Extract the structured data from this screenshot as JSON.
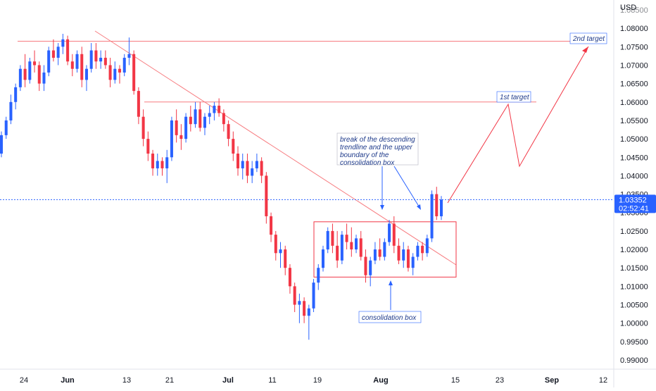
{
  "colors": {
    "up": "#2962ff",
    "down": "#f23645",
    "annotation_line": "#f77c80",
    "annotation_text": "#1e3a8a",
    "last_price_bg": "#2962ff",
    "grid": "#ffffff",
    "axis_text": "#131722",
    "dotted_price_line": "#2962ff"
  },
  "chart_data": {
    "type": "candlestick",
    "title": "",
    "currency": "USD",
    "last_price": "1.03352",
    "countdown": "02:52:41",
    "y_ticks": [
      "1.08500",
      "1.08000",
      "1.07500",
      "1.07000",
      "1.06500",
      "1.06000",
      "1.05500",
      "1.05000",
      "1.04500",
      "1.04000",
      "1.03500",
      "1.03000",
      "1.02500",
      "1.02000",
      "1.01500",
      "1.01000",
      "1.00500",
      "1.00000",
      "0.99500",
      "0.99000"
    ],
    "x_ticks": [
      "24",
      "Jun",
      "13",
      "21",
      "Jul",
      "11",
      "19",
      "Aug",
      "15",
      "23",
      "Sep",
      "12"
    ],
    "ylim": [
      0.9875,
      1.0875
    ],
    "levels": [
      {
        "name": "top-resistance",
        "value": 1.0765
      },
      {
        "name": "mid-resistance",
        "value": 1.06
      }
    ],
    "consolidation_box": {
      "low": 1.0125,
      "high": 1.0275
    },
    "annotations": [
      {
        "key": "target2",
        "text": "2nd target"
      },
      {
        "key": "target1",
        "text": "1st target"
      },
      {
        "key": "break",
        "text": "break of the descending trendline and the upper boundary of the consolidation box"
      },
      {
        "key": "box",
        "text": "consolidation box"
      }
    ],
    "candles": [
      [
        1.046,
        1.052,
        1.045,
        1.051
      ],
      [
        1.051,
        1.056,
        1.05,
        1.055
      ],
      [
        1.055,
        1.062,
        1.054,
        1.06
      ],
      [
        1.06,
        1.065,
        1.058,
        1.064
      ],
      [
        1.064,
        1.07,
        1.063,
        1.069
      ],
      [
        1.069,
        1.073,
        1.064,
        1.066
      ],
      [
        1.066,
        1.072,
        1.065,
        1.071
      ],
      [
        1.071,
        1.074,
        1.068,
        1.07
      ],
      [
        1.07,
        1.071,
        1.063,
        1.065
      ],
      [
        1.065,
        1.07,
        1.063,
        1.068
      ],
      [
        1.068,
        1.075,
        1.067,
        1.074
      ],
      [
        1.074,
        1.077,
        1.071,
        1.072
      ],
      [
        1.072,
        1.076,
        1.07,
        1.075
      ],
      [
        1.075,
        1.0785,
        1.073,
        1.077
      ],
      [
        1.077,
        1.078,
        1.07,
        1.071
      ],
      [
        1.071,
        1.073,
        1.067,
        1.069
      ],
      [
        1.069,
        1.074,
        1.068,
        1.073
      ],
      [
        1.073,
        1.075,
        1.064,
        1.066
      ],
      [
        1.066,
        1.07,
        1.063,
        1.069
      ],
      [
        1.069,
        1.076,
        1.068,
        1.074
      ],
      [
        1.074,
        1.076,
        1.069,
        1.071
      ],
      [
        1.071,
        1.074,
        1.069,
        1.072
      ],
      [
        1.072,
        1.074,
        1.069,
        1.07
      ],
      [
        1.07,
        1.072,
        1.064,
        1.066
      ],
      [
        1.066,
        1.071,
        1.065,
        1.069
      ],
      [
        1.069,
        1.07,
        1.065,
        1.068
      ],
      [
        1.068,
        1.073,
        1.067,
        1.072
      ],
      [
        1.072,
        1.0775,
        1.07,
        1.073
      ],
      [
        1.073,
        1.074,
        1.062,
        1.063
      ],
      [
        1.063,
        1.064,
        1.054,
        1.056
      ],
      [
        1.056,
        1.058,
        1.048,
        1.05
      ],
      [
        1.05,
        1.052,
        1.044,
        1.046
      ],
      [
        1.046,
        1.047,
        1.04,
        1.042
      ],
      [
        1.042,
        1.046,
        1.04,
        1.044
      ],
      [
        1.044,
        1.045,
        1.04,
        1.042
      ],
      [
        1.042,
        1.047,
        1.038,
        1.045
      ],
      [
        1.045,
        1.056,
        1.044,
        1.055
      ],
      [
        1.055,
        1.058,
        1.049,
        1.051
      ],
      [
        1.051,
        1.054,
        1.047,
        1.05
      ],
      [
        1.05,
        1.057,
        1.049,
        1.056
      ],
      [
        1.056,
        1.059,
        1.052,
        1.054
      ],
      [
        1.054,
        1.06,
        1.053,
        1.058
      ],
      [
        1.058,
        1.06,
        1.052,
        1.053
      ],
      [
        1.053,
        1.057,
        1.051,
        1.056
      ],
      [
        1.056,
        1.059,
        1.054,
        1.057
      ],
      [
        1.057,
        1.06,
        1.055,
        1.059
      ],
      [
        1.059,
        1.061,
        1.056,
        1.057
      ],
      [
        1.057,
        1.058,
        1.052,
        1.054
      ],
      [
        1.054,
        1.055,
        1.048,
        1.05
      ],
      [
        1.05,
        1.052,
        1.044,
        1.046
      ],
      [
        1.046,
        1.048,
        1.04,
        1.042
      ],
      [
        1.042,
        1.046,
        1.039,
        1.044
      ],
      [
        1.044,
        1.046,
        1.038,
        1.04
      ],
      [
        1.04,
        1.044,
        1.038,
        1.042
      ],
      [
        1.042,
        1.046,
        1.041,
        1.044
      ],
      [
        1.044,
        1.045,
        1.038,
        1.04
      ],
      [
        1.04,
        1.041,
        1.027,
        1.029
      ],
      [
        1.029,
        1.03,
        1.022,
        1.024
      ],
      [
        1.024,
        1.025,
        1.017,
        1.019
      ],
      [
        1.019,
        1.022,
        1.015,
        1.02
      ],
      [
        1.02,
        1.021,
        1.013,
        1.015
      ],
      [
        1.015,
        1.016,
        1.008,
        1.01
      ],
      [
        1.01,
        1.011,
        1.003,
        1.005
      ],
      [
        1.005,
        1.008,
        1.0,
        1.006
      ],
      [
        1.006,
        1.007,
        1.0,
        1.002
      ],
      [
        1.002,
        1.005,
        0.9955,
        1.004
      ],
      [
        1.004,
        1.012,
        1.003,
        1.011
      ],
      [
        1.011,
        1.016,
        1.009,
        1.015
      ],
      [
        1.015,
        1.021,
        1.014,
        1.02
      ],
      [
        1.02,
        1.026,
        1.019,
        1.025
      ],
      [
        1.025,
        1.027,
        1.019,
        1.021
      ],
      [
        1.021,
        1.025,
        1.015,
        1.017
      ],
      [
        1.017,
        1.025,
        1.016,
        1.024
      ],
      [
        1.024,
        1.027,
        1.02,
        1.022
      ],
      [
        1.022,
        1.026,
        1.018,
        1.02
      ],
      [
        1.02,
        1.024,
        1.019,
        1.023
      ],
      [
        1.023,
        1.025,
        1.017,
        1.018
      ],
      [
        1.018,
        1.02,
        1.011,
        1.013
      ],
      [
        1.013,
        1.018,
        1.01,
        1.017
      ],
      [
        1.017,
        1.022,
        1.016,
        1.02
      ],
      [
        1.02,
        1.023,
        1.017,
        1.018
      ],
      [
        1.018,
        1.023,
        1.017,
        1.022
      ],
      [
        1.022,
        1.028,
        1.021,
        1.027
      ],
      [
        1.027,
        1.029,
        1.019,
        1.021
      ],
      [
        1.021,
        1.023,
        1.016,
        1.017
      ],
      [
        1.017,
        1.022,
        1.015,
        1.02
      ],
      [
        1.02,
        1.021,
        1.014,
        1.015
      ],
      [
        1.015,
        1.019,
        1.013,
        1.018
      ],
      [
        1.018,
        1.022,
        1.017,
        1.021
      ],
      [
        1.021,
        1.022,
        1.017,
        1.019
      ],
      [
        1.019,
        1.024,
        1.018,
        1.023
      ],
      [
        1.023,
        1.036,
        1.022,
        1.035
      ],
      [
        1.035,
        1.037,
        1.028,
        1.029
      ],
      [
        1.029,
        1.0345,
        1.028,
        1.0335
      ]
    ]
  }
}
